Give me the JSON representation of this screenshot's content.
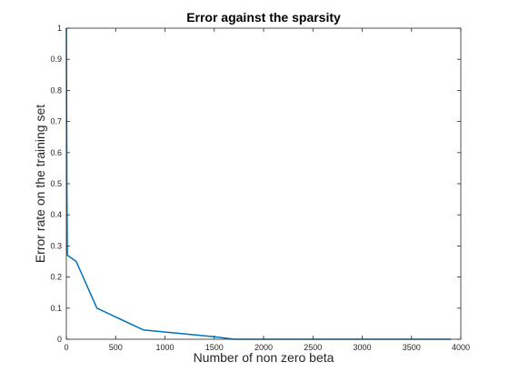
{
  "chart_data": {
    "type": "line",
    "title": "Error against the sparsity",
    "xlabel": "Number of non zero beta",
    "ylabel": "Error rate on the training set",
    "xlim": [
      0,
      4000
    ],
    "ylim": [
      0,
      1
    ],
    "xticks": [
      0,
      500,
      1000,
      1500,
      2000,
      2500,
      3000,
      3500,
      4000
    ],
    "xtick_labels": [
      "0",
      "500",
      "1000",
      "1500",
      "2000",
      "2500",
      "3000",
      "3500",
      "4000"
    ],
    "yticks": [
      0,
      0.1,
      0.2,
      0.3,
      0.4,
      0.5,
      0.6,
      0.7,
      0.8,
      0.9,
      1
    ],
    "ytick_labels": [
      "0",
      "0.1",
      "0.2",
      "0.3",
      "0.4",
      "0.5",
      "0.6",
      "0.7",
      "0.8",
      "0.9",
      "1"
    ],
    "grid": false,
    "box": true,
    "series": [
      {
        "color": "#0072bd",
        "x": [
          0,
          2,
          5,
          10,
          100,
          310,
          780,
          1500,
          1700,
          2000,
          3000,
          3900
        ],
        "y": [
          1.0,
          0.85,
          0.5,
          0.27,
          0.25,
          0.1,
          0.03,
          0.008,
          0.0,
          0.0,
          0.0,
          0.0
        ]
      }
    ]
  }
}
